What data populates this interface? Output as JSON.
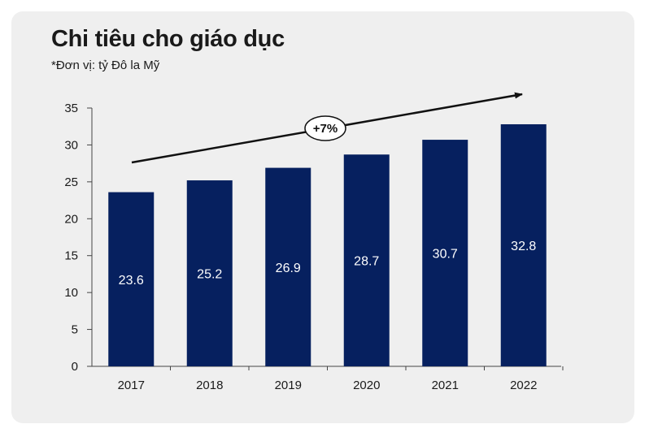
{
  "colors": {
    "card_bg": "#efefef",
    "bar": "#06205f",
    "axis": "#444444",
    "text": "#1a1a1a"
  },
  "chart_data": {
    "type": "bar",
    "title": "Chi tiêu cho giáo dục",
    "subtitle": "*Đơn vị: tỷ Đô la Mỹ",
    "categories": [
      "2017",
      "2018",
      "2019",
      "2020",
      "2021",
      "2022"
    ],
    "values": [
      23.6,
      25.2,
      26.9,
      28.7,
      30.7,
      32.8
    ],
    "data_labels": [
      "23.6",
      "25.2",
      "26.9",
      "28.7",
      "30.7",
      "32.8"
    ],
    "ylim": [
      0,
      35
    ],
    "yticks": [
      0,
      5,
      10,
      15,
      20,
      25,
      30,
      35
    ],
    "grid": false,
    "legend": "none",
    "annotation": {
      "type": "trend-arrow",
      "label": "+7%"
    }
  }
}
